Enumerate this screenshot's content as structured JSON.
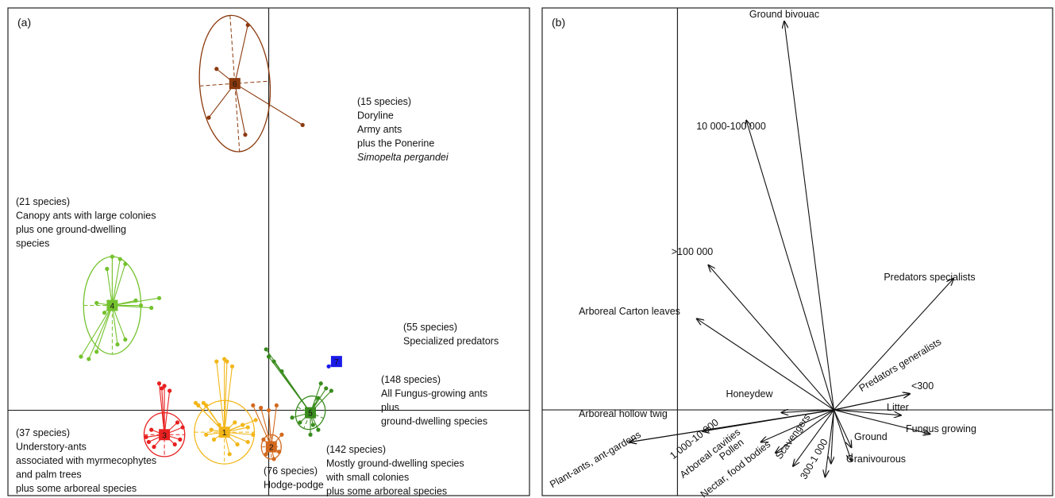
{
  "chart_data": [
    {
      "type": "scatter",
      "panel_label": "(a)",
      "x_range": [
        -1.0,
        1.0
      ],
      "y_range": [
        -0.35,
        1.65
      ],
      "grid": false,
      "clusters": [
        {
          "id": "1",
          "color": "#f2b619",
          "center": [
            -0.17,
            -0.09
          ],
          "ellipse": {
            "rx": 0.115,
            "ry": 0.13,
            "rot": 0
          },
          "points": [
            [
              -0.28,
              0.03
            ],
            [
              -0.27,
              0.02
            ],
            [
              -0.25,
              0.03
            ],
            [
              -0.24,
              0.02
            ],
            [
              -0.2,
              0.2
            ],
            [
              -0.17,
              0.21
            ],
            [
              -0.16,
              0.2
            ],
            [
              -0.14,
              0.18
            ],
            [
              -0.13,
              -0.05
            ],
            [
              -0.1,
              -0.06
            ],
            [
              -0.08,
              -0.07
            ],
            [
              -0.12,
              -0.14
            ],
            [
              -0.15,
              -0.18
            ],
            [
              -0.21,
              -0.12
            ],
            [
              -0.24,
              -0.1
            ],
            [
              -0.08,
              -0.13
            ],
            [
              -0.06,
              -0.1
            ],
            [
              -0.19,
              -0.06
            ],
            [
              -0.22,
              -0.08
            ],
            [
              -0.05,
              -0.04
            ]
          ],
          "annotation": [
            "(76 species)",
            "Hodge-podge"
          ]
        },
        {
          "id": "2",
          "color": "#d2691e",
          "center": [
            0.01,
            -0.15
          ],
          "ellipse": {
            "rx": 0.038,
            "ry": 0.05,
            "rot": 0
          },
          "points": [
            [
              -0.06,
              0.02
            ],
            [
              -0.03,
              0.01
            ],
            [
              0.0,
              0.0
            ],
            [
              0.03,
              0.02
            ],
            [
              -0.02,
              -0.12
            ],
            [
              0.04,
              -0.17
            ],
            [
              0.02,
              -0.2
            ],
            [
              -0.01,
              -0.18
            ],
            [
              0.05,
              -0.1
            ]
          ],
          "annotation": [
            "(142 species)",
            "Mostly ground-dwelling species",
            "with small colonies",
            "plus some arboreal species"
          ]
        },
        {
          "id": "3",
          "color": "#e82020",
          "center": [
            -0.4,
            -0.1
          ],
          "ellipse": {
            "rx": 0.078,
            "ry": 0.09,
            "rot": 0
          },
          "points": [
            [
              -0.42,
              0.11
            ],
            [
              -0.41,
              0.09
            ],
            [
              -0.4,
              0.1
            ],
            [
              -0.38,
              0.08
            ],
            [
              -0.47,
              -0.11
            ],
            [
              -0.46,
              -0.13
            ],
            [
              -0.44,
              -0.15
            ],
            [
              -0.36,
              -0.14
            ],
            [
              -0.34,
              -0.12
            ],
            [
              -0.33,
              -0.07
            ],
            [
              -0.35,
              -0.05
            ],
            [
              -0.45,
              -0.08
            ]
          ],
          "annotation": [
            "(37 species)",
            "Understory-ants",
            "associated with myrmecophytes",
            "and palm trees",
            "plus some arboreal species"
          ]
        },
        {
          "id": "4",
          "color": "#74c22e",
          "center": [
            -0.6,
            0.43
          ],
          "ellipse": {
            "rx": 0.11,
            "ry": 0.2,
            "rot": 0
          },
          "points": [
            [
              -0.6,
              0.63
            ],
            [
              -0.57,
              0.62
            ],
            [
              -0.55,
              0.6
            ],
            [
              -0.62,
              0.58
            ],
            [
              -0.51,
              0.45
            ],
            [
              -0.49,
              0.43
            ],
            [
              -0.45,
              0.42
            ],
            [
              -0.42,
              0.46
            ],
            [
              -0.72,
              0.22
            ],
            [
              -0.69,
              0.21
            ],
            [
              -0.66,
              0.24
            ],
            [
              -0.58,
              0.27
            ],
            [
              -0.55,
              0.29
            ],
            [
              -0.63,
              0.4
            ],
            [
              -0.66,
              0.44
            ]
          ],
          "annotation": [
            "(21 species)",
            "Canopy ants with large colonies",
            "plus one ground-dwelling",
            "species"
          ]
        },
        {
          "id": "5",
          "color": "#3a8c1e",
          "center": [
            0.16,
            -0.01
          ],
          "ellipse": {
            "rx": 0.055,
            "ry": 0.07,
            "rot": -0.4
          },
          "points": [
            [
              -0.01,
              0.25
            ],
            [
              0.0,
              0.22
            ],
            [
              0.02,
              0.2
            ],
            [
              0.05,
              0.16
            ],
            [
              0.2,
              0.11
            ],
            [
              0.22,
              0.09
            ],
            [
              0.24,
              0.08
            ],
            [
              0.19,
              0.05
            ],
            [
              0.17,
              -0.06
            ],
            [
              0.12,
              -0.05
            ],
            [
              0.09,
              -0.03
            ],
            [
              0.16,
              -0.1
            ],
            [
              0.19,
              -0.08
            ]
          ],
          "annotation": [
            "(148 species)",
            "All Fungus-growing ants",
            "plus",
            "ground-dwelling species"
          ]
        },
        {
          "id": "6",
          "color": "#8b3a0e",
          "center": [
            -0.13,
            1.34
          ],
          "ellipse": {
            "rx": 0.135,
            "ry": 0.28,
            "rot": 0.07
          },
          "points": [
            [
              -0.08,
              1.58
            ],
            [
              -0.2,
              1.4
            ],
            [
              -0.23,
              1.2
            ],
            [
              -0.09,
              1.13
            ],
            [
              0.13,
              1.17
            ]
          ],
          "annotation": [
            "(15 species)",
            "Doryline",
            "Army ants",
            "plus the Ponerine",
            "Simopelta pergandei"
          ]
        },
        {
          "id": "7",
          "color": "#1a1ae8",
          "center": [
            0.26,
            0.2
          ],
          "points": [
            [
              0.23,
              0.18
            ]
          ],
          "annotation": [
            "(55 species)",
            "Specialized predators"
          ]
        }
      ]
    },
    {
      "type": "biplot",
      "panel_label": "(b)",
      "x_range": [
        -1.0,
        0.75
      ],
      "y_range": [
        -0.32,
        1.5
      ],
      "grid": false,
      "arrows": [
        {
          "label": "Ground bivouac",
          "x": -0.17,
          "y": 1.45
        },
        {
          "label": "10 000-100 000",
          "x": -0.3,
          "y": 1.08
        },
        {
          "label": ">100 000",
          "x": -0.43,
          "y": 0.54
        },
        {
          "label": "Arboreal Carton leaves",
          "x": -0.47,
          "y": 0.34
        },
        {
          "label": "Predators specialists",
          "x": 0.41,
          "y": 0.49
        },
        {
          "label": "Predators generalists",
          "x": 0.26,
          "y": 0.06
        },
        {
          "label": "<300",
          "x": 0.26,
          "y": 0.06
        },
        {
          "label": "Honeydew",
          "x": -0.18,
          "y": -0.01
        },
        {
          "label": "Arboreal hollow twig",
          "x": -0.7,
          "y": -0.12
        },
        {
          "label": "Plant-ants, ant-gardens",
          "x": -0.7,
          "y": -0.12
        },
        {
          "label": "1 000-10 000",
          "x": -0.45,
          "y": -0.08
        },
        {
          "label": "Arboreal cavities",
          "x": -0.25,
          "y": -0.12
        },
        {
          "label": "Pollen",
          "x": -0.2,
          "y": -0.16
        },
        {
          "label": "Nectar, food bodies",
          "x": -0.14,
          "y": -0.21
        },
        {
          "label": "Scavengers",
          "x": -0.01,
          "y": -0.2
        },
        {
          "label": "300-1 000",
          "x": -0.03,
          "y": -0.25
        },
        {
          "label": "Litter",
          "x": 0.23,
          "y": -0.02
        },
        {
          "label": "Fungus growing",
          "x": 0.33,
          "y": -0.09
        },
        {
          "label": "Ground",
          "x": 0.06,
          "y": -0.14
        },
        {
          "label": "Granivourous",
          "x": 0.06,
          "y": -0.19
        }
      ]
    }
  ]
}
